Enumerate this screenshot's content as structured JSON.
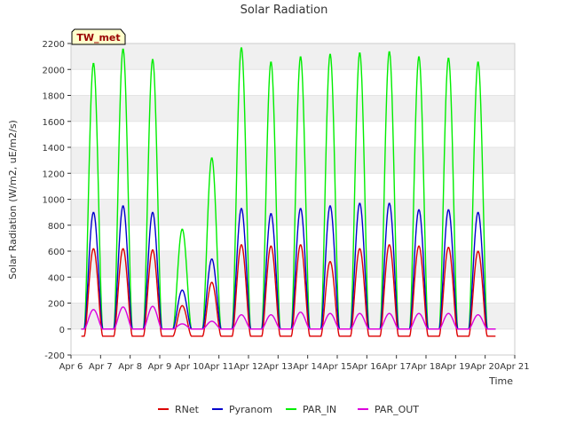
{
  "chart_data": {
    "type": "line",
    "title": "Solar Radiation",
    "xlabel": "Time",
    "ylabel": "Solar Radiation (W/m2, uE/m2/s)",
    "site_label": "TW_met",
    "xlim": [
      6,
      21
    ],
    "ylim": [
      -200,
      2200
    ],
    "x_ticks": [
      6,
      7,
      8,
      9,
      10,
      11,
      12,
      13,
      14,
      15,
      16,
      17,
      18,
      19,
      20,
      21
    ],
    "x_tick_labels": [
      "Apr 6",
      "Apr 7",
      "Apr 8",
      "Apr 9",
      "Apr 10",
      "Apr 11",
      "Apr 12",
      "Apr 13",
      "Apr 14",
      "Apr 15",
      "Apr 16",
      "Apr 17",
      "Apr 18",
      "Apr 19",
      "Apr 20",
      "Apr 21"
    ],
    "y_ticks": [
      -200,
      0,
      200,
      400,
      600,
      800,
      1000,
      1200,
      1400,
      1600,
      1800,
      2000,
      2200
    ],
    "grid": "horizontal bands",
    "legend_position": "bottom",
    "data_start": 6.35,
    "data_end": 20.35,
    "day_starts": [
      6.35,
      7.35,
      8.35,
      9.35,
      10.35,
      11.35,
      12.35,
      13.35,
      14.35,
      15.35,
      16.35,
      17.35,
      18.35,
      19.35
    ],
    "series": [
      {
        "name": "RNet",
        "color": "#dd0000",
        "night_value": -55,
        "daily_peaks": [
          620,
          620,
          610,
          180,
          360,
          650,
          640,
          650,
          520,
          620,
          650,
          640,
          630,
          600
        ]
      },
      {
        "name": "Pyranom",
        "color": "#0000cc",
        "night_value": 0,
        "daily_peaks": [
          900,
          950,
          900,
          300,
          540,
          930,
          890,
          930,
          950,
          970,
          970,
          920,
          920,
          900
        ]
      },
      {
        "name": "PAR_IN",
        "color": "#00ee00",
        "night_value": 0,
        "daily_peaks": [
          2050,
          2160,
          2080,
          770,
          1320,
          2170,
          2060,
          2100,
          2120,
          2130,
          2140,
          2100,
          2090,
          2060
        ]
      },
      {
        "name": "PAR_OUT",
        "color": "#dd00dd",
        "night_value": 0,
        "daily_peaks": [
          150,
          170,
          175,
          40,
          60,
          110,
          110,
          130,
          120,
          120,
          120,
          120,
          120,
          110
        ]
      }
    ]
  }
}
